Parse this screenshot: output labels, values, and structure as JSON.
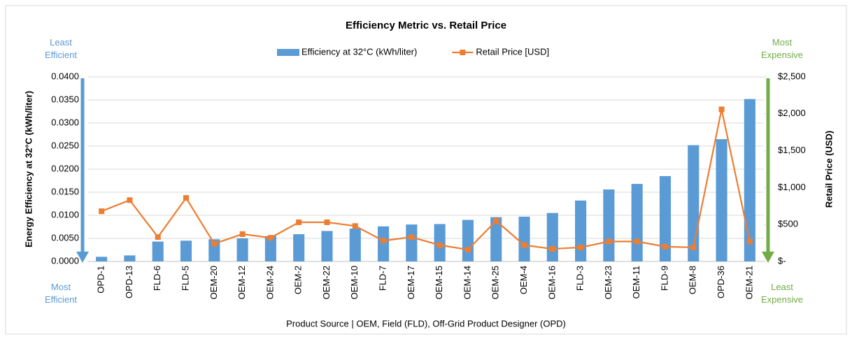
{
  "chart_data": {
    "type": "bar",
    "title": "Efficiency Metric vs. Retail Price",
    "xlabel": "Product Source | OEM, Field (FLD), Off-Grid Product Designer (OPD)",
    "ylabel": "Energy  Efficiency at 32°C (kWh/liter)",
    "y2label": "Retail Price (USD)",
    "categories": [
      "OPD-1",
      "OPD-13",
      "FLD-6",
      "FLD-5",
      "OEM-20",
      "OEM-12",
      "OEM-24",
      "OEM-2",
      "OEM-22",
      "OEM-10",
      "FLD-7",
      "OEM-17",
      "OEM-15",
      "OEM-14",
      "OEM-25",
      "OEM-4",
      "OEM-16",
      "FLD-3",
      "OEM-23",
      "OEM-11",
      "FLD-9",
      "OEM-8",
      "OPD-36",
      "OEM-21"
    ],
    "series": [
      {
        "name": "Efficiency at 32°C (kWh/liter)",
        "type": "bar",
        "color": "#5b9bd5",
        "values": [
          0.001,
          0.0013,
          0.0043,
          0.0045,
          0.0048,
          0.005,
          0.0055,
          0.0059,
          0.0066,
          0.0071,
          0.0076,
          0.008,
          0.0081,
          0.009,
          0.0096,
          0.0097,
          0.0105,
          0.0132,
          0.0156,
          0.0168,
          0.0185,
          0.0252,
          0.0265,
          0.0352
        ]
      },
      {
        "name": "Retail Price [USD]",
        "type": "line",
        "axis": "y2",
        "color": "#ed7d31",
        "values": [
          680,
          830,
          330,
          860,
          240,
          370,
          320,
          530,
          530,
          480,
          280,
          330,
          220,
          160,
          550,
          220,
          170,
          190,
          270,
          270,
          200,
          190,
          2060,
          270
        ]
      }
    ],
    "ylim": [
      0,
      0.04
    ],
    "yticks": [
      {
        "value": 0,
        "label": "0.0000"
      },
      {
        "value": 0.005,
        "label": "0.0050"
      },
      {
        "value": 0.01,
        "label": "0.0100"
      },
      {
        "value": 0.015,
        "label": "0.0150"
      },
      {
        "value": 0.02,
        "label": "0.0200"
      },
      {
        "value": 0.025,
        "label": "0.0250"
      },
      {
        "value": 0.03,
        "label": "0.0300"
      },
      {
        "value": 0.035,
        "label": "0.0350"
      },
      {
        "value": 0.04,
        "label": "0.0400"
      }
    ],
    "y2lim": [
      0,
      2500
    ],
    "y2ticks": [
      {
        "value": 0,
        "label": "$-"
      },
      {
        "value": 500,
        "label": "$500"
      },
      {
        "value": 1000,
        "label": "$1,000"
      },
      {
        "value": 1500,
        "label": "$1,500"
      },
      {
        "value": 2000,
        "label": "$2,000"
      },
      {
        "value": 2500,
        "label": "$2,500"
      }
    ],
    "grid": true,
    "legend": "top",
    "annotations": [
      {
        "text": "Least Efficient",
        "color": "#5b9bd5"
      },
      {
        "text": "Most Efficient",
        "color": "#5b9bd5"
      },
      {
        "text": "Most Expensive",
        "color": "#70ad47"
      },
      {
        "text": "Least Expensive",
        "color": "#70ad47"
      }
    ]
  }
}
